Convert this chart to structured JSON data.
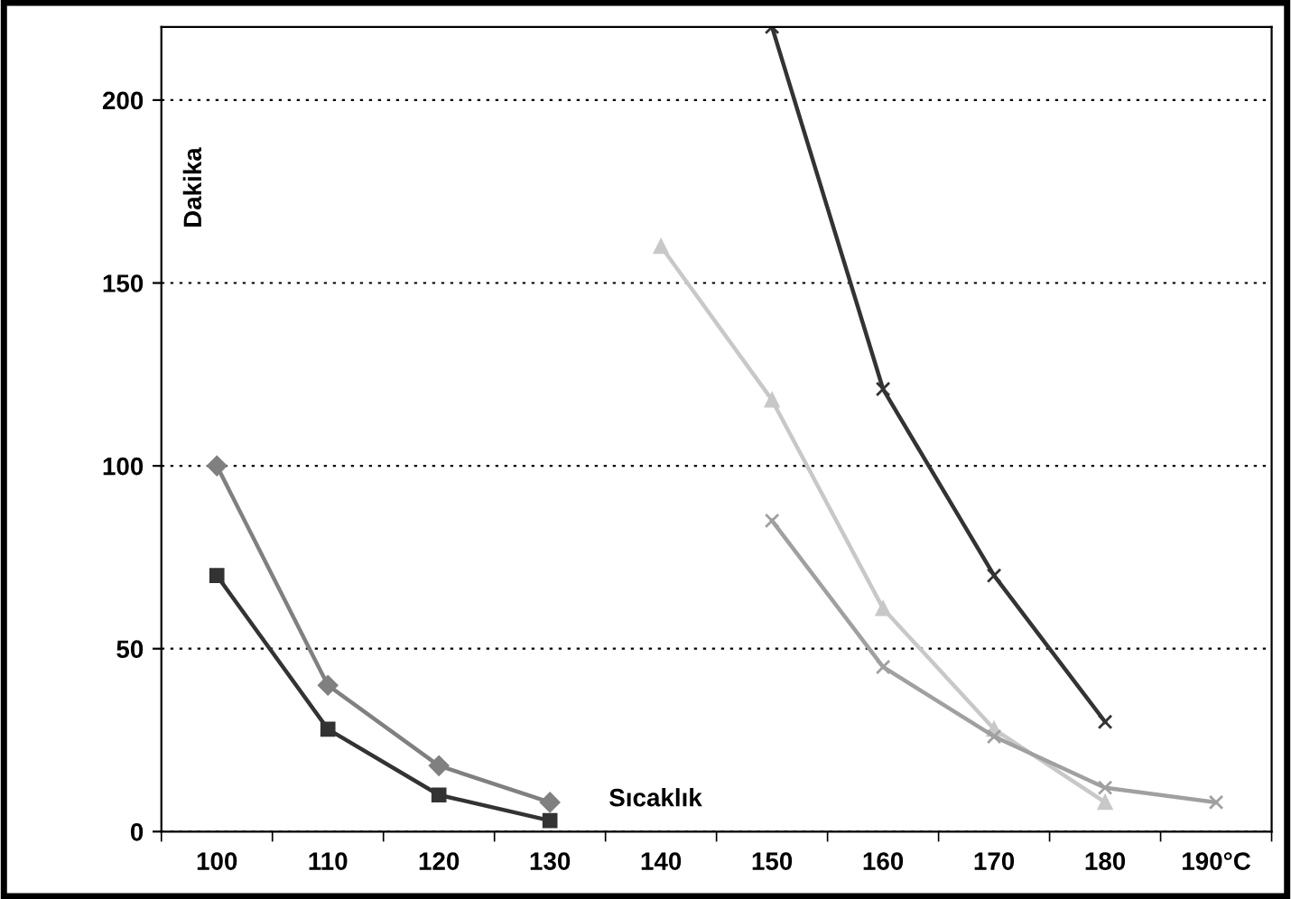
{
  "chart_data": {
    "type": "line",
    "xlabel": "Sıcaklık",
    "ylabel": "Dakika",
    "categories": [
      "100",
      "110",
      "120",
      "130",
      "140",
      "150",
      "160",
      "170",
      "180",
      "190°C"
    ],
    "series": [
      {
        "color": "#808080",
        "marker": "diamond",
        "values": [
          100,
          40,
          18,
          8,
          null,
          null,
          null,
          null,
          null,
          null
        ]
      },
      {
        "color": "#333333",
        "marker": "square",
        "values": [
          70,
          28,
          10,
          3,
          null,
          null,
          null,
          null,
          null,
          null
        ]
      },
      {
        "color": "#c8c8c8",
        "marker": "triangle",
        "values": [
          null,
          null,
          null,
          null,
          160,
          118,
          61,
          28,
          8,
          null
        ]
      },
      {
        "color": "#333333",
        "marker": "cross",
        "values": [
          null,
          null,
          null,
          null,
          null,
          220,
          121,
          70,
          30,
          null
        ]
      },
      {
        "color": "#a0a0a0",
        "marker": "cross",
        "values": [
          null,
          null,
          null,
          null,
          null,
          85,
          45,
          26,
          12,
          8
        ]
      }
    ],
    "ylim": [
      0,
      220
    ],
    "yticks": [
      0,
      50,
      100,
      150,
      200
    ],
    "grid": "y",
    "line_style": "solid"
  }
}
